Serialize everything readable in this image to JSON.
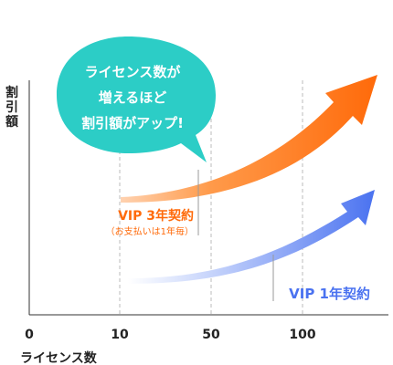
{
  "chart_data": {
    "type": "area",
    "ylabel": "割引額",
    "xlabel": "ライセンス数",
    "x_ticks": [
      "0",
      "10",
      "50",
      "100"
    ],
    "gridlines_at": [
      "10",
      "50",
      "100"
    ],
    "callout": {
      "lines": [
        "ライセンス数が",
        "増えるほど",
        "割引額がアップ!"
      ],
      "color": "#2ccdc6"
    },
    "series": [
      {
        "name": "VIP 3年契約",
        "note": "（お支払いは1年毎）",
        "color": "#ff6a0a"
      },
      {
        "name": "VIP 1年契約",
        "color": "#4a72f0"
      }
    ]
  }
}
